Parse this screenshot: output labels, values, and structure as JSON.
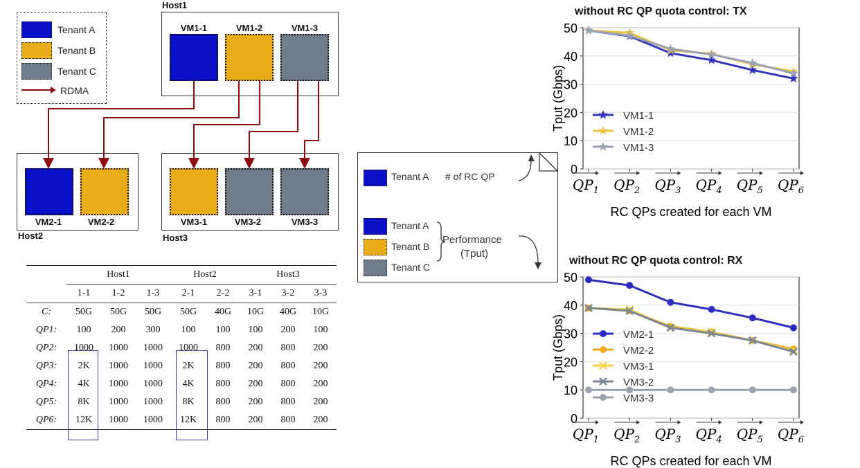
{
  "colors": {
    "tenant_a": "#0a10c8",
    "tenant_b": "#e9ad1c",
    "tenant_c": "#6f7c8c",
    "rdma": "#8b0d0d",
    "vm1_1": "#3335b8",
    "vm1_2": "#f2c440",
    "vm1_3": "#9aa3b4",
    "vm2_1": "#2c2cc0",
    "vm2_2": "#e9ad1c",
    "vm3_1": "#f4d14a",
    "vm3_2": "#7b8694",
    "vm3_3": "#9aa2ad"
  },
  "legend": {
    "tenant_a": "Tenant A",
    "tenant_b": "Tenant B",
    "tenant_c": "Tenant C",
    "rdma": "RDMA"
  },
  "hosts": {
    "host1": "Host1",
    "host2": "Host2",
    "host3": "Host3"
  },
  "vms": {
    "vm1_1": "VM1-1",
    "vm1_2": "VM1-2",
    "vm1_3": "VM1-3",
    "vm2_1": "VM2-1",
    "vm2_2": "VM2-2",
    "vm3_1": "VM3-1",
    "vm3_2": "VM3-2",
    "vm3_3": "VM3-3"
  },
  "table": {
    "host_headers": [
      "Host1",
      "Host2",
      "Host3"
    ],
    "vm_headers": [
      "1-1",
      "1-2",
      "1-3",
      "2-1",
      "2-2",
      "3-1",
      "3-2",
      "3-3"
    ],
    "rows": [
      {
        "label": "C:",
        "cells": [
          "50G",
          "50G",
          "50G",
          "50G",
          "40G",
          "10G",
          "40G",
          "10G"
        ]
      },
      {
        "label": "QP1:",
        "cells": [
          "100",
          "200",
          "300",
          "100",
          "100",
          "100",
          "200",
          "100"
        ]
      },
      {
        "label": "QP2:",
        "cells": [
          "1000",
          "1000",
          "1000",
          "1000",
          "800",
          "200",
          "800",
          "200"
        ]
      },
      {
        "label": "QP3:",
        "cells": [
          "2K",
          "1000",
          "1000",
          "2K",
          "800",
          "200",
          "800",
          "200"
        ]
      },
      {
        "label": "QP4:",
        "cells": [
          "4K",
          "1000",
          "1000",
          "4K",
          "800",
          "200",
          "800",
          "200"
        ]
      },
      {
        "label": "QP5:",
        "cells": [
          "8K",
          "1000",
          "1000",
          "8K",
          "800",
          "200",
          "800",
          "200"
        ]
      },
      {
        "label": "QP6:",
        "cells": [
          "12K",
          "1000",
          "1000",
          "12K",
          "800",
          "200",
          "800",
          "200"
        ]
      }
    ]
  },
  "note": {
    "tenant_a": "Tenant A",
    "rc_qp": "# of RC QP",
    "perf_a": "Tenant A",
    "perf_b": "Tenant B",
    "perf_c": "Tenant C",
    "performance": "Performance",
    "tput": "(Tput)"
  },
  "chart_data": [
    {
      "type": "line",
      "title": "without RC QP quota control: TX",
      "ylabel": "Tput (Gbps)",
      "xlabel": "RC QPs created for each VM",
      "categories": [
        "QP1",
        "QP2",
        "QP3",
        "QP4",
        "QP5",
        "QP6"
      ],
      "ylim": [
        0,
        50
      ],
      "yticks": [
        0,
        10,
        20,
        30,
        40,
        50
      ],
      "legend": "center-left",
      "series": [
        {
          "name": "VM1-1",
          "color": "#3335b8",
          "marker": "star",
          "values": [
            49,
            47,
            41,
            38.5,
            35,
            32
          ]
        },
        {
          "name": "VM1-2",
          "color": "#f2c440",
          "marker": "star",
          "values": [
            49,
            48.2,
            42,
            40.8,
            37,
            34.5
          ]
        },
        {
          "name": "VM1-3",
          "color": "#9aa3b4",
          "marker": "star",
          "values": [
            49,
            47.2,
            42.5,
            40.5,
            37.5,
            33.8
          ]
        }
      ]
    },
    {
      "type": "line",
      "title": "without RC QP quota control: RX",
      "ylabel": "Tput (Gbps)",
      "xlabel": "RC QPs created for each VM",
      "categories": [
        "QP1",
        "QP2",
        "QP3",
        "QP4",
        "QP5",
        "QP6"
      ],
      "ylim": [
        0,
        50
      ],
      "yticks": [
        0,
        10,
        20,
        30,
        40,
        50
      ],
      "legend": "left",
      "series": [
        {
          "name": "VM2-1",
          "color": "#2c2cc0",
          "marker": "circle",
          "values": [
            49,
            47,
            41,
            38.5,
            35.5,
            32
          ]
        },
        {
          "name": "VM2-2",
          "color": "#e9ad1c",
          "marker": "circle",
          "values": [
            39,
            38,
            32.5,
            30.5,
            27.5,
            24.5
          ]
        },
        {
          "name": "VM3-1",
          "color": "#f4d14a",
          "marker": "x",
          "values": [
            39,
            38.5,
            32,
            30.5,
            27.5,
            24
          ]
        },
        {
          "name": "VM3-2",
          "color": "#7b8694",
          "marker": "x",
          "values": [
            39,
            38,
            32,
            30,
            27.5,
            23.5
          ]
        },
        {
          "name": "VM3-3",
          "color": "#9aa2ad",
          "marker": "circle",
          "values": [
            10,
            10,
            10,
            10,
            10,
            10
          ]
        }
      ]
    }
  ]
}
